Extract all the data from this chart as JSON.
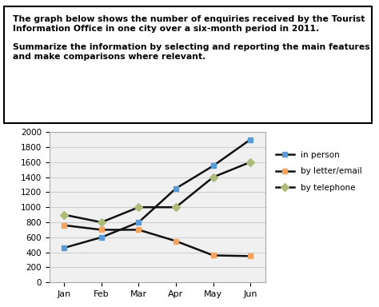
{
  "months": [
    "Jan",
    "Feb",
    "Mar",
    "Apr",
    "May",
    "Jun"
  ],
  "in_person": [
    460,
    600,
    800,
    1250,
    1550,
    1900
  ],
  "by_letter_email": [
    760,
    700,
    700,
    550,
    360,
    350
  ],
  "by_telephone": [
    900,
    800,
    1000,
    1000,
    1400,
    1600
  ],
  "line_color": "#111111",
  "in_person_marker_color": "#5B9BD5",
  "by_letter_marker_color": "#F4A460",
  "by_telephone_marker_color": "#ADBC7A",
  "ylim": [
    0,
    2000
  ],
  "yticks": [
    0,
    200,
    400,
    600,
    800,
    1000,
    1200,
    1400,
    1600,
    1800,
    2000
  ],
  "legend_labels": [
    "in person",
    "by letter/email",
    "by telephone"
  ],
  "background_color": "#ffffff",
  "chart_bg_color": "#f0f0f0",
  "grid_color": "#d0d0d0",
  "text_line1": "The graph below shows the number of enquiries received by the Tourist",
  "text_line2": "Information Office in one city over a six-month period in 2011.",
  "text_line3": "",
  "text_line4": "Summarize the information by selecting and reporting the main features",
  "text_line5": "and make comparisons where relevant."
}
